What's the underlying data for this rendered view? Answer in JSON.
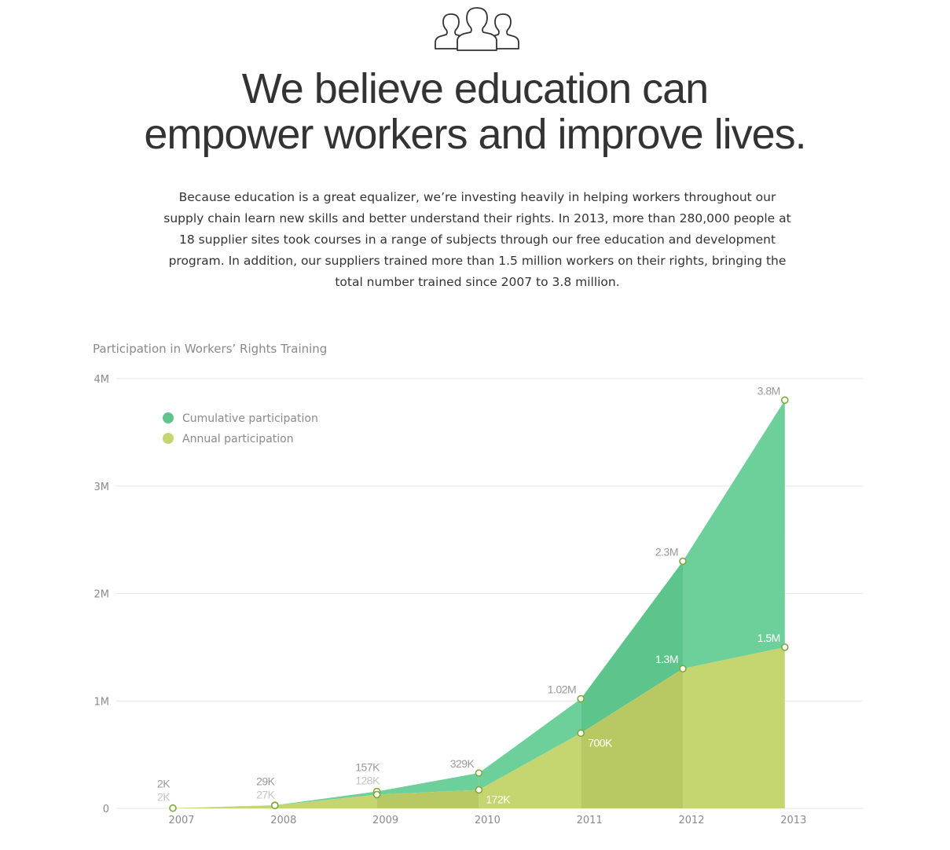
{
  "header": {
    "icon": "people-group-icon",
    "headline_line1": "We believe education can",
    "headline_line2": "empower workers and improve lives.",
    "intro": "Because education is a great equalizer, we’re investing heavily in helping workers throughout our supply chain learn new skills and better understand their rights. In 2013, more than 280,000 people at 18 supplier sites took courses in a range of subjects through our free education and development program. In addition, our suppliers trained more than 1.5 million workers on their rights, bringing the total number trained since 2007 to 3.8 million."
  },
  "colors": {
    "cumulative": "#6dd09b",
    "cumulative_dark": "#5dc58b",
    "annual": "#c5d56f",
    "annual_dark": "#b8c862",
    "marker_stroke": "#7ea83a",
    "label_dark": "#999999",
    "label_light": "#c4c4c4",
    "grid": "#e5e5e5"
  },
  "chart_data": {
    "type": "area",
    "title": "Participation in Workers’ Rights Training",
    "x": [
      "2007",
      "2008",
      "2009",
      "2010",
      "2011",
      "2012",
      "2013"
    ],
    "ylim": [
      0,
      4000000
    ],
    "yticks": [
      {
        "value": 0,
        "label": "0"
      },
      {
        "value": 1000000,
        "label": "1M"
      },
      {
        "value": 2000000,
        "label": "2M"
      },
      {
        "value": 3000000,
        "label": "3M"
      },
      {
        "value": 4000000,
        "label": "4M"
      }
    ],
    "grid": true,
    "legend_position": "top-left",
    "series": [
      {
        "name": "Cumulative participation",
        "values": [
          2000,
          29000,
          157000,
          329000,
          1020000,
          2300000,
          3800000
        ],
        "labels": [
          "2K",
          "29K",
          "157K",
          "329K",
          "1.02M",
          "2.3M",
          "3.8M"
        ]
      },
      {
        "name": "Annual participation",
        "values": [
          2000,
          27000,
          128000,
          172000,
          700000,
          1300000,
          1500000
        ],
        "labels": [
          "2K",
          "27K",
          "128K",
          "172K",
          "700K",
          "1.3M",
          "1.5M"
        ]
      }
    ]
  }
}
